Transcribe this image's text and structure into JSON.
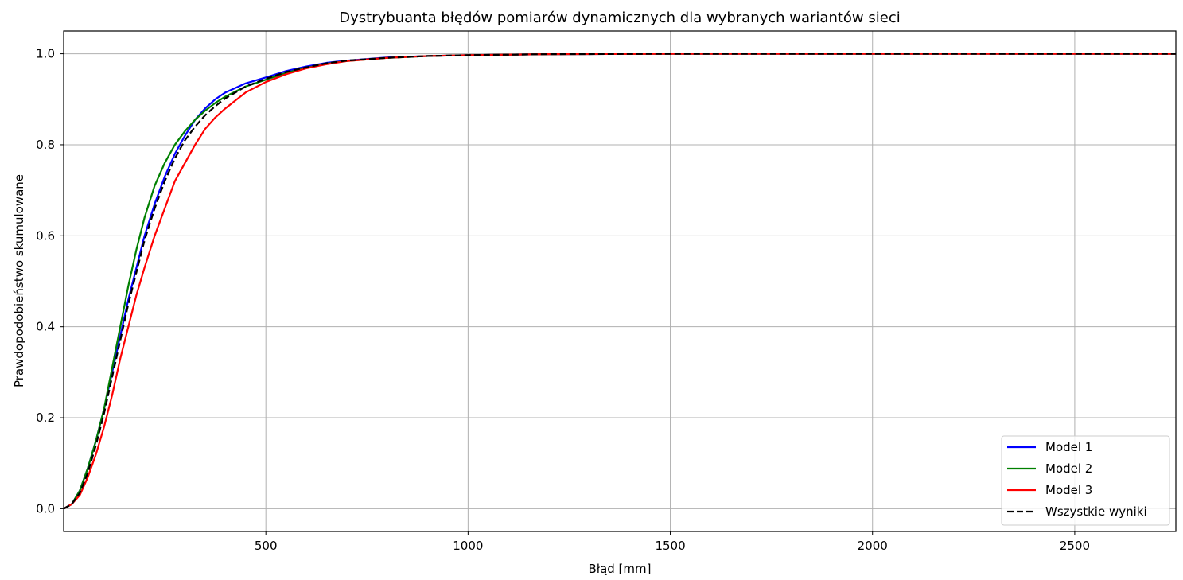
{
  "chart_data": {
    "type": "line",
    "title": "Dystrybuanta błędów pomiarów dynamicznych dla wybranych wariantów sieci",
    "xlabel": "Błąd [mm]",
    "ylabel": "Prawdopodobieństwo skumulowane",
    "xlim": [
      0,
      2750
    ],
    "ylim": [
      -0.05,
      1.05
    ],
    "xticks": [
      500,
      1000,
      1500,
      2000,
      2500
    ],
    "yticks": [
      0.0,
      0.2,
      0.4,
      0.6,
      0.8,
      1.0
    ],
    "xtick_labels": [
      "500",
      "1000",
      "1500",
      "2000",
      "2500"
    ],
    "ytick_labels": [
      "0.0",
      "0.2",
      "0.4",
      "0.6",
      "0.8",
      "1.0"
    ],
    "grid": true,
    "legend_position": "bottom-right",
    "series": [
      {
        "name": "Model 1",
        "color": "#0000ff",
        "style": "solid",
        "x": [
          0,
          20,
          40,
          60,
          80,
          100,
          120,
          140,
          160,
          180,
          200,
          225,
          250,
          275,
          300,
          325,
          350,
          375,
          400,
          450,
          500,
          550,
          600,
          650,
          700,
          800,
          900,
          1000,
          1200,
          1500,
          2000,
          2500,
          2750
        ],
        "y": [
          0.0,
          0.01,
          0.04,
          0.09,
          0.15,
          0.22,
          0.3,
          0.38,
          0.46,
          0.53,
          0.6,
          0.67,
          0.73,
          0.78,
          0.82,
          0.855,
          0.88,
          0.9,
          0.915,
          0.935,
          0.948,
          0.962,
          0.972,
          0.98,
          0.985,
          0.992,
          0.995,
          0.997,
          0.999,
          1.0,
          1.0,
          1.0,
          1.0
        ]
      },
      {
        "name": "Model 2",
        "color": "#008000",
        "style": "solid",
        "x": [
          0,
          20,
          40,
          60,
          80,
          100,
          120,
          140,
          160,
          180,
          200,
          225,
          250,
          275,
          300,
          325,
          350,
          375,
          400,
          450,
          500,
          550,
          600,
          650,
          700,
          800,
          900,
          1000,
          1200,
          1500,
          2000,
          2500,
          2750
        ],
        "y": [
          0.0,
          0.01,
          0.04,
          0.09,
          0.15,
          0.22,
          0.31,
          0.4,
          0.49,
          0.57,
          0.64,
          0.71,
          0.76,
          0.8,
          0.83,
          0.855,
          0.875,
          0.892,
          0.906,
          0.928,
          0.943,
          0.958,
          0.969,
          0.978,
          0.984,
          0.991,
          0.995,
          0.997,
          0.999,
          1.0,
          1.0,
          1.0,
          1.0
        ]
      },
      {
        "name": "Model 3",
        "color": "#ff0000",
        "style": "solid",
        "x": [
          0,
          20,
          40,
          60,
          80,
          100,
          120,
          140,
          160,
          180,
          200,
          225,
          250,
          275,
          300,
          325,
          350,
          375,
          400,
          450,
          500,
          550,
          600,
          650,
          700,
          800,
          900,
          1000,
          1200,
          1500,
          2000,
          2500,
          2750
        ],
        "y": [
          0.0,
          0.01,
          0.03,
          0.07,
          0.12,
          0.18,
          0.25,
          0.33,
          0.4,
          0.47,
          0.53,
          0.6,
          0.66,
          0.72,
          0.76,
          0.8,
          0.835,
          0.86,
          0.88,
          0.915,
          0.938,
          0.955,
          0.968,
          0.977,
          0.984,
          0.991,
          0.995,
          0.997,
          0.999,
          1.0,
          1.0,
          1.0,
          1.0
        ]
      },
      {
        "name": "Wszystkie wyniki",
        "color": "#000000",
        "style": "dashed",
        "x": [
          0,
          20,
          40,
          60,
          80,
          100,
          120,
          140,
          160,
          180,
          200,
          225,
          250,
          275,
          300,
          325,
          350,
          375,
          400,
          450,
          500,
          550,
          600,
          650,
          700,
          800,
          900,
          1000,
          1200,
          1500,
          2000,
          2500,
          2750
        ],
        "y": [
          0.0,
          0.01,
          0.035,
          0.08,
          0.14,
          0.21,
          0.29,
          0.37,
          0.45,
          0.52,
          0.59,
          0.66,
          0.72,
          0.77,
          0.81,
          0.84,
          0.865,
          0.885,
          0.902,
          0.928,
          0.945,
          0.96,
          0.97,
          0.979,
          0.985,
          0.991,
          0.995,
          0.997,
          0.999,
          1.0,
          1.0,
          1.0,
          1.0
        ]
      }
    ]
  }
}
